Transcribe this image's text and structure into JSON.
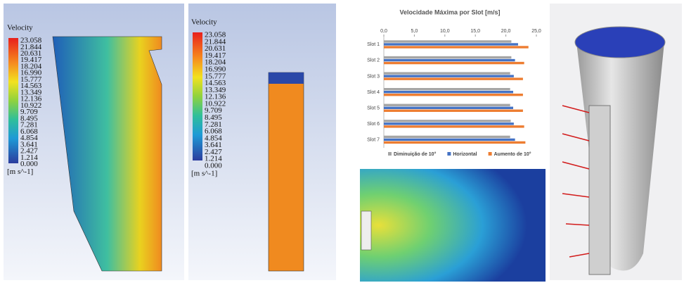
{
  "chart_data": {
    "type": "bar",
    "orientation": "horizontal",
    "title": "Velocidade Máxima por Slot  [m/s]",
    "categories": [
      "Slot 1",
      "Slot 2",
      "Slot 3",
      "Slot 4",
      "Slot 5",
      "Slot 6",
      "Slot 7"
    ],
    "series": [
      {
        "name": "Diminuição de 10°",
        "color": "#a5a5a5",
        "values": [
          20.9,
          20.9,
          20.7,
          20.7,
          20.7,
          20.8,
          20.7
        ]
      },
      {
        "name": "Horizontal",
        "color": "#4472c4",
        "values": [
          22.0,
          21.5,
          21.3,
          21.2,
          21.2,
          21.3,
          21.5
        ]
      },
      {
        "name": "Aumento de 10°",
        "color": "#ed7d31",
        "values": [
          23.7,
          23.0,
          22.8,
          22.8,
          22.8,
          23.0,
          23.2
        ]
      }
    ],
    "xlim": [
      0,
      25
    ],
    "xticks": [
      {
        "value": 0,
        "label": "0,0"
      },
      {
        "value": 5,
        "label": "5,0"
      },
      {
        "value": 10,
        "label": "10,0"
      },
      {
        "value": 15,
        "label": "15,0"
      },
      {
        "value": 20,
        "label": "20,0"
      },
      {
        "value": 25,
        "label": "25,0"
      }
    ],
    "grid": false,
    "legend": "bottom"
  },
  "panels": [
    {
      "title": "Velocity",
      "labels": [
        "23.058",
        "21.844",
        "20.631",
        "19.417",
        "18.204",
        "16.990",
        "15.777",
        "14.563",
        "13.349",
        "12.136",
        "10.922",
        "9.709",
        "8.495",
        "7.281",
        "6.068",
        "4.854",
        "3.641",
        "2.427",
        "1.214",
        "0.000"
      ],
      "unit": "[m s^-1]"
    },
    {
      "title": "Velocity",
      "labels": [
        "23.058",
        "21.844",
        "20.631",
        "19.417",
        "18.204",
        "16.990",
        "15.777",
        "14.563",
        "13.349",
        "12.136",
        "10.922",
        "9.709",
        "8.495",
        "7.281",
        "6.068",
        "4.854",
        "3.641",
        "2.427",
        "1.214",
        "0.000"
      ],
      "unit": "[m s^-1]"
    }
  ]
}
